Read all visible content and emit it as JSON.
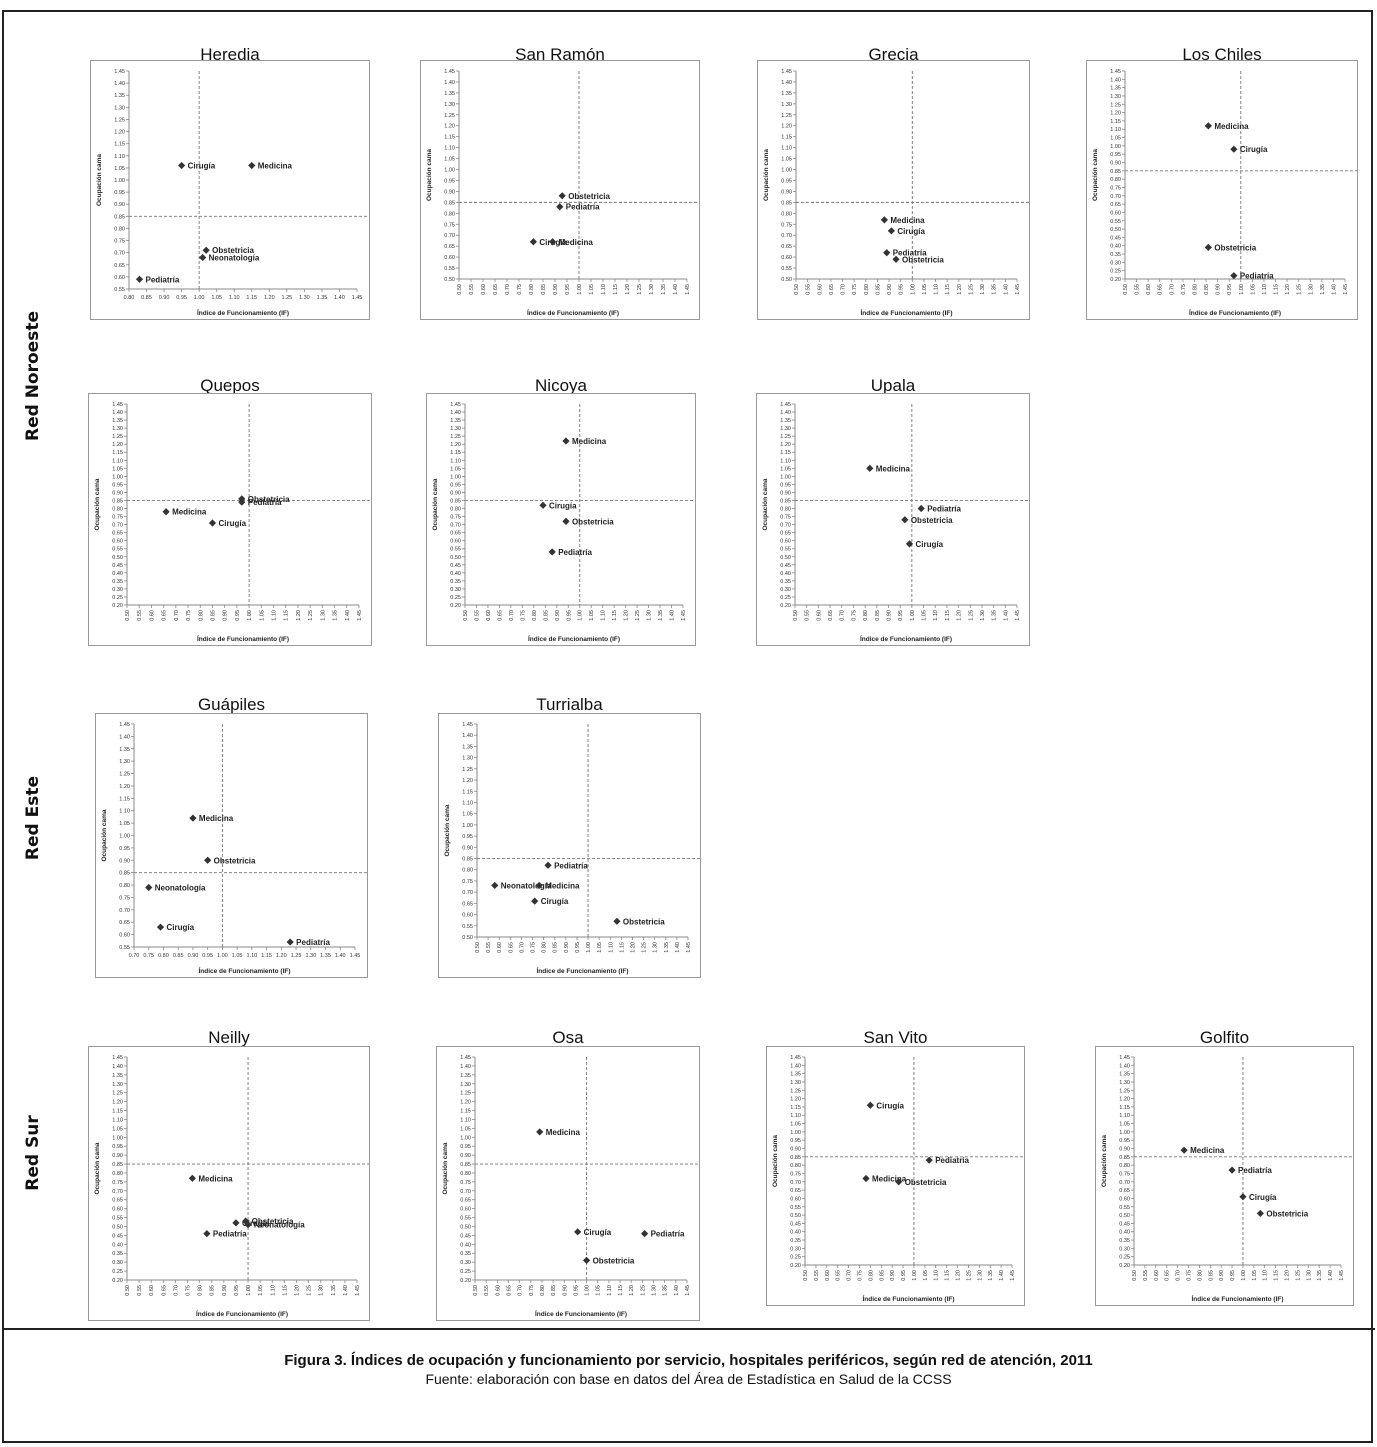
{
  "figure": {
    "caption_title": "Figura 3. Índices de ocupación y funcionamiento por servicio, hospitales periféricos, según red de atención, 2011",
    "caption_source": "Fuente: elaboración con base en datos del Área de Estadística en Salud de la CCSS"
  },
  "networks": [
    {
      "label": "Red Noroeste"
    },
    {
      "label": "Red Este"
    },
    {
      "label": "Red Sur"
    }
  ],
  "chart_data": [
    {
      "type": "scatter",
      "title": "Heredia",
      "xlabel": "Índice de Funcionamiento (IF)",
      "ylabel": "Ocupación cama",
      "xlim": [
        0.8,
        1.45
      ],
      "ylim": [
        0.55,
        1.45
      ],
      "ref_x": 1.0,
      "ref_y": 0.85,
      "points": [
        {
          "label": "Cirugía",
          "x": 0.95,
          "y": 1.06
        },
        {
          "label": "Medicina",
          "x": 1.15,
          "y": 1.06
        },
        {
          "label": "Obstetricia",
          "x": 1.02,
          "y": 0.71
        },
        {
          "label": "Neonatología",
          "x": 1.01,
          "y": 0.68
        },
        {
          "label": "Pediatría",
          "x": 0.83,
          "y": 0.59
        }
      ]
    },
    {
      "type": "scatter",
      "title": "San Ramón",
      "xlabel": "Índice de Funcionamiento (IF)",
      "ylabel": "Ocupación cama",
      "xlim": [
        0.5,
        1.45
      ],
      "ylim": [
        0.5,
        1.45
      ],
      "ref_x": 1.0,
      "ref_y": 0.85,
      "points": [
        {
          "label": "Obstetricia",
          "x": 0.93,
          "y": 0.88
        },
        {
          "label": "Pediatría",
          "x": 0.92,
          "y": 0.83
        },
        {
          "label": "Cirugía",
          "x": 0.81,
          "y": 0.67
        },
        {
          "label": "Medicina",
          "x": 0.89,
          "y": 0.67
        }
      ]
    },
    {
      "type": "scatter",
      "title": "Grecia",
      "xlabel": "Índice de Funcionamiento (IF)",
      "ylabel": "Ocupación cama",
      "xlim": [
        0.5,
        1.45
      ],
      "ylim": [
        0.5,
        1.45
      ],
      "ref_x": 1.0,
      "ref_y": 0.85,
      "points": [
        {
          "label": "Medicina",
          "x": 0.88,
          "y": 0.77
        },
        {
          "label": "Cirugía",
          "x": 0.91,
          "y": 0.72
        },
        {
          "label": "Pediatría",
          "x": 0.89,
          "y": 0.62
        },
        {
          "label": "Obstetricia",
          "x": 0.93,
          "y": 0.59
        }
      ]
    },
    {
      "type": "scatter",
      "title": "Los Chiles",
      "xlabel": "Índice de Funcionamiento (IF)",
      "ylabel": "Ocupación cama",
      "xlim": [
        0.5,
        1.45
      ],
      "ylim": [
        0.2,
        1.45
      ],
      "ref_x": 1.0,
      "ref_y": 0.85,
      "points": [
        {
          "label": "Medicina",
          "x": 0.86,
          "y": 1.12
        },
        {
          "label": "Cirugía",
          "x": 0.97,
          "y": 0.98
        },
        {
          "label": "Obstetricia",
          "x": 0.86,
          "y": 0.39
        },
        {
          "label": "Pediatría",
          "x": 0.97,
          "y": 0.22
        }
      ]
    },
    {
      "type": "scatter",
      "title": "Quepos",
      "xlabel": "Índice de Funcionamiento (IF)",
      "ylabel": "Ocupación cama",
      "xlim": [
        0.5,
        1.45
      ],
      "ylim": [
        0.2,
        1.45
      ],
      "ref_x": 1.0,
      "ref_y": 0.85,
      "points": [
        {
          "label": "Medicina",
          "x": 0.66,
          "y": 0.78
        },
        {
          "label": "Cirugía",
          "x": 0.85,
          "y": 0.71
        },
        {
          "label": "Obstetricia",
          "x": 0.97,
          "y": 0.86
        },
        {
          "label": "Pediatría",
          "x": 0.97,
          "y": 0.84
        }
      ]
    },
    {
      "type": "scatter",
      "title": "Nicoya",
      "xlabel": "Índice de Funcionamiento (IF)",
      "ylabel": "Ocupación cama",
      "xlim": [
        0.5,
        1.45
      ],
      "ylim": [
        0.2,
        1.45
      ],
      "ref_x": 1.0,
      "ref_y": 0.85,
      "points": [
        {
          "label": "Medicina",
          "x": 0.94,
          "y": 1.22
        },
        {
          "label": "Cirugía",
          "x": 0.84,
          "y": 0.82
        },
        {
          "label": "Obstetricia",
          "x": 0.94,
          "y": 0.72
        },
        {
          "label": "Pediatría",
          "x": 0.88,
          "y": 0.53
        }
      ]
    },
    {
      "type": "scatter",
      "title": "Upala",
      "xlabel": "Índice de Funcionamiento (IF)",
      "ylabel": "Ocupación cama",
      "xlim": [
        0.5,
        1.45
      ],
      "ylim": [
        0.2,
        1.45
      ],
      "ref_x": 1.0,
      "ref_y": 0.85,
      "points": [
        {
          "label": "Medicina",
          "x": 0.82,
          "y": 1.05
        },
        {
          "label": "Pediatría",
          "x": 1.04,
          "y": 0.8
        },
        {
          "label": "Obstetricia",
          "x": 0.97,
          "y": 0.73
        },
        {
          "label": "Cirugía",
          "x": 0.99,
          "y": 0.58
        }
      ]
    },
    {
      "type": "scatter",
      "title": "Guápiles",
      "xlabel": "Índice de Funcionamiento (IF)",
      "ylabel": "Ocupación cama",
      "xlim": [
        0.7,
        1.45
      ],
      "ylim": [
        0.55,
        1.45
      ],
      "ref_x": 1.0,
      "ref_y": 0.85,
      "points": [
        {
          "label": "Medicina",
          "x": 0.9,
          "y": 1.07
        },
        {
          "label": "Obstetricia",
          "x": 0.95,
          "y": 0.9
        },
        {
          "label": "Neonatología",
          "x": 0.75,
          "y": 0.79
        },
        {
          "label": "Cirugía",
          "x": 0.79,
          "y": 0.63
        },
        {
          "label": "Pediatría",
          "x": 1.23,
          "y": 0.57
        }
      ]
    },
    {
      "type": "scatter",
      "title": "Turrialba",
      "xlabel": "Índice de Funcionamiento (IF)",
      "ylabel": "Ocupación cama",
      "xlim": [
        0.5,
        1.45
      ],
      "ylim": [
        0.5,
        1.45
      ],
      "ref_x": 1.0,
      "ref_y": 0.85,
      "points": [
        {
          "label": "Pediatría",
          "x": 0.82,
          "y": 0.82
        },
        {
          "label": "Neonatología",
          "x": 0.58,
          "y": 0.73
        },
        {
          "label": "Medicina",
          "x": 0.78,
          "y": 0.73
        },
        {
          "label": "Cirugía",
          "x": 0.76,
          "y": 0.66
        },
        {
          "label": "Obstetricia",
          "x": 1.13,
          "y": 0.57
        }
      ]
    },
    {
      "type": "scatter",
      "title": "Neilly",
      "xlabel": "Índice de Funcionamiento (IF)",
      "ylabel": "Ocupación cama",
      "xlim": [
        0.5,
        1.45
      ],
      "ylim": [
        0.2,
        1.45
      ],
      "ref_x": 1.0,
      "ref_y": 0.85,
      "points": [
        {
          "label": "Medicina",
          "x": 0.77,
          "y": 0.77
        },
        {
          "label": "Cirugía",
          "x": 0.95,
          "y": 0.52
        },
        {
          "label": "Obstetricia",
          "x": 0.99,
          "y": 0.53
        },
        {
          "label": "Neonatología",
          "x": 1.0,
          "y": 0.51
        },
        {
          "label": "Pediatría",
          "x": 0.83,
          "y": 0.46
        }
      ]
    },
    {
      "type": "scatter",
      "title": "Osa",
      "xlabel": "Índice de Funcionamiento (IF)",
      "ylabel": "Ocupación cama",
      "xlim": [
        0.5,
        1.45
      ],
      "ylim": [
        0.2,
        1.45
      ],
      "ref_x": 1.0,
      "ref_y": 0.85,
      "points": [
        {
          "label": "Medicina",
          "x": 0.79,
          "y": 1.03
        },
        {
          "label": "Cirugía",
          "x": 0.96,
          "y": 0.47
        },
        {
          "label": "Pediatría",
          "x": 1.26,
          "y": 0.46
        },
        {
          "label": "Obstetricia",
          "x": 1.0,
          "y": 0.31
        }
      ]
    },
    {
      "type": "scatter",
      "title": "San Vito",
      "xlabel": "Índice de Funcionamiento (IF)",
      "ylabel": "Ocupación cama",
      "xlim": [
        0.5,
        1.45
      ],
      "ylim": [
        0.2,
        1.45
      ],
      "ref_x": 1.0,
      "ref_y": 0.85,
      "points": [
        {
          "label": "Cirugía",
          "x": 0.8,
          "y": 1.16
        },
        {
          "label": "Pediatría",
          "x": 1.07,
          "y": 0.83
        },
        {
          "label": "Medicina",
          "x": 0.78,
          "y": 0.72
        },
        {
          "label": "Obstetricia",
          "x": 0.93,
          "y": 0.7
        }
      ]
    },
    {
      "type": "scatter",
      "title": "Golfito",
      "xlabel": "Índice de Funcionamiento (IF)",
      "ylabel": "Ocupación cama",
      "xlim": [
        0.5,
        1.45
      ],
      "ylim": [
        0.2,
        1.45
      ],
      "ref_x": 1.0,
      "ref_y": 0.85,
      "points": [
        {
          "label": "Medicina",
          "x": 0.73,
          "y": 0.89
        },
        {
          "label": "Pediatría",
          "x": 0.95,
          "y": 0.77
        },
        {
          "label": "Cirugía",
          "x": 1.0,
          "y": 0.61
        },
        {
          "label": "Obstetricia",
          "x": 1.08,
          "y": 0.51
        }
      ]
    }
  ]
}
